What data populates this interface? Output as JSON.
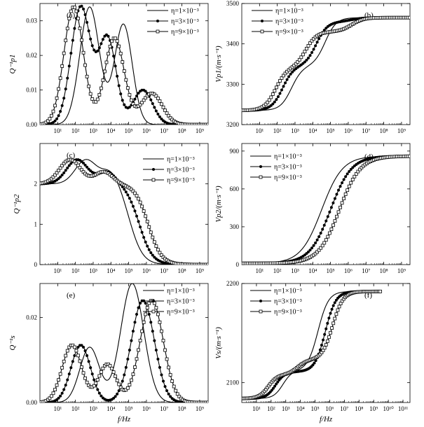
{
  "figure": {
    "xlabel": "f/Hz",
    "legend_labels": [
      "η=1×10⁻³",
      "η=3×10⁻³",
      "η=9×10⁻³"
    ],
    "series_styles": [
      "solid",
      "filled-circle",
      "open-square"
    ],
    "colors": {
      "line": "#000000",
      "background": "#ffffff"
    }
  },
  "chart_data": [
    {
      "id": "a",
      "panel_label": "(a)",
      "type": "line",
      "xscale": "log",
      "xlim": [
        1,
        3000000000.0
      ],
      "ylim": [
        0,
        0.035
      ],
      "x_ticks": [
        10,
        100,
        1000,
        10000,
        100000,
        1000000,
        10000000,
        100000000,
        1000000000
      ],
      "x_tick_labels": [
        "10¹",
        "10²",
        "10³",
        "10⁴",
        "10⁵",
        "10⁶",
        "10⁷",
        "10⁸",
        "10⁹"
      ],
      "y_ticks": [
        0,
        0.01,
        0.02,
        0.03
      ],
      "y_tick_labels": [
        "0.00",
        "0.01",
        "0.02",
        "0.03"
      ],
      "ylabel": "Q⁻¹p1",
      "legend_position": "top-right",
      "series": [
        {
          "name": "η=1×10⁻³",
          "style": "solid",
          "peaks": [
            {
              "logf": 2.8,
              "amp": 0.034,
              "w": 0.55
            },
            {
              "logf": 4.7,
              "amp": 0.029,
              "w": 0.5
            }
          ]
        },
        {
          "name": "η=3×10⁻³",
          "style": "filled-circle",
          "peaks": [
            {
              "logf": 2.3,
              "amp": 0.034,
              "w": 0.55
            },
            {
              "logf": 3.8,
              "amp": 0.025,
              "w": 0.5
            },
            {
              "logf": 5.8,
              "amp": 0.01,
              "w": 0.55
            }
          ]
        },
        {
          "name": "η=9×10⁻³",
          "style": "open-square",
          "peaks": [
            {
              "logf": 1.9,
              "amp": 0.034,
              "w": 0.55
            },
            {
              "logf": 4.2,
              "amp": 0.025,
              "w": 0.55
            },
            {
              "logf": 6.3,
              "amp": 0.009,
              "w": 0.6
            }
          ]
        }
      ]
    },
    {
      "id": "b",
      "panel_label": "(b)",
      "type": "line",
      "xscale": "log",
      "xlim": [
        1,
        3000000000.0
      ],
      "ylim": [
        3200,
        3500
      ],
      "x_ticks": [
        10,
        100,
        1000,
        10000,
        100000,
        1000000,
        10000000,
        100000000,
        1000000000
      ],
      "x_tick_labels": [
        "10¹",
        "10²",
        "10³",
        "10⁴",
        "10⁵",
        "10⁶",
        "10⁷",
        "10⁸",
        "10⁹"
      ],
      "y_ticks": [
        3200,
        3300,
        3400,
        3500
      ],
      "y_tick_labels": [
        "3200",
        "3300",
        "3400",
        "3500"
      ],
      "ylabel": "Vp1/(m·s⁻¹)",
      "legend_position": "top-right",
      "series": [
        {
          "name": "η=1×10⁻³",
          "style": "solid",
          "base": 3235,
          "steps": [
            {
              "logf": 2.8,
              "amp": 110,
              "k": 3.2
            },
            {
              "logf": 4.7,
              "amp": 120,
              "k": 3.2
            }
          ]
        },
        {
          "name": "η=3×10⁻³",
          "style": "filled-circle",
          "base": 3235,
          "steps": [
            {
              "logf": 2.3,
              "amp": 110,
              "k": 3.2
            },
            {
              "logf": 4.2,
              "amp": 110,
              "k": 3.2
            },
            {
              "logf": 6.2,
              "amp": 10,
              "k": 3
            }
          ]
        },
        {
          "name": "η=9×10⁻³",
          "style": "open-square",
          "base": 3235,
          "steps": [
            {
              "logf": 1.9,
              "amp": 105,
              "k": 3.2
            },
            {
              "logf": 3.6,
              "amp": 90,
              "k": 3.2
            },
            {
              "logf": 6.2,
              "amp": 35,
              "k": 3
            }
          ]
        }
      ]
    },
    {
      "id": "c",
      "panel_label": "(c)",
      "type": "line",
      "xscale": "log",
      "xlim": [
        1,
        3000000000.0
      ],
      "ylim": [
        0,
        3
      ],
      "x_ticks": [
        10,
        100,
        1000,
        10000,
        100000,
        1000000,
        10000000,
        100000000,
        1000000000
      ],
      "x_tick_labels": [
        "10¹",
        "10²",
        "10³",
        "10⁴",
        "10⁵",
        "10⁶",
        "10⁷",
        "10⁸",
        "10⁹"
      ],
      "y_ticks": [
        0,
        1,
        2
      ],
      "y_tick_labels": [
        "0",
        "1",
        "2"
      ],
      "ylabel": "Q⁻¹p2",
      "legend_position": "top-right",
      "series": [
        {
          "name": "η=1×10⁻³",
          "style": "solid",
          "base": 2.0,
          "mid": 5.1,
          "k": 2.7,
          "bumps": [
            {
              "logf": 2.6,
              "amp": 0.6,
              "w": 0.6
            },
            {
              "logf": 4.0,
              "amp": 0.35,
              "w": 0.5
            }
          ]
        },
        {
          "name": "η=3×10⁻³",
          "style": "filled-circle",
          "base": 2.0,
          "mid": 5.6,
          "k": 2.7,
          "bumps": [
            {
              "logf": 2.1,
              "amp": 0.6,
              "w": 0.6
            },
            {
              "logf": 3.8,
              "amp": 0.3,
              "w": 0.5
            }
          ]
        },
        {
          "name": "η=9×10⁻³",
          "style": "open-square",
          "base": 2.0,
          "mid": 6.1,
          "k": 2.7,
          "bumps": [
            {
              "logf": 1.7,
              "amp": 0.6,
              "w": 0.6
            },
            {
              "logf": 3.6,
              "amp": 0.3,
              "w": 0.5
            }
          ]
        }
      ]
    },
    {
      "id": "d",
      "panel_label": "(d)",
      "type": "line",
      "xscale": "log",
      "xlim": [
        1,
        3000000000.0
      ],
      "ylim": [
        0,
        960
      ],
      "x_ticks": [
        10,
        100,
        1000,
        10000,
        100000,
        1000000,
        10000000,
        100000000,
        1000000000
      ],
      "x_tick_labels": [
        "10¹",
        "10²",
        "10³",
        "10⁴",
        "10⁵",
        "10⁶",
        "10⁷",
        "10⁸",
        "10⁹"
      ],
      "y_ticks": [
        0,
        300,
        600,
        900
      ],
      "y_tick_labels": [
        "0",
        "300",
        "600",
        "900"
      ],
      "ylabel": "Vp2/(m·s⁻¹)",
      "legend_position": "top-right",
      "series": [
        {
          "name": "η=1×10⁻³",
          "style": "solid",
          "base": 10,
          "steps": [
            {
              "logf": 4.5,
              "amp": 850,
              "k": 1.7
            }
          ]
        },
        {
          "name": "η=3×10⁻³",
          "style": "filled-circle",
          "base": 10,
          "steps": [
            {
              "logf": 5.0,
              "amp": 850,
              "k": 1.7
            }
          ]
        },
        {
          "name": "η=9×10⁻³",
          "style": "open-square",
          "base": 10,
          "steps": [
            {
              "logf": 5.5,
              "amp": 850,
              "k": 1.7
            }
          ]
        }
      ]
    },
    {
      "id": "e",
      "panel_label": "(e)",
      "type": "line",
      "xscale": "log",
      "xlim": [
        1,
        3000000000.0
      ],
      "ylim": [
        0,
        0.028
      ],
      "x_ticks": [
        10,
        100,
        1000,
        10000,
        100000,
        1000000,
        10000000,
        100000000,
        1000000000
      ],
      "x_tick_labels": [
        "10¹",
        "10²",
        "10³",
        "10⁴",
        "10⁵",
        "10⁶",
        "10⁷",
        "10⁸",
        "10⁹"
      ],
      "y_ticks": [
        0,
        0.02
      ],
      "y_tick_labels": [
        "0.00",
        "0.02"
      ],
      "ylabel": "Q⁻¹s",
      "legend_position": "top-right",
      "series": [
        {
          "name": "η=1×10⁻³",
          "style": "solid",
          "peaks": [
            {
              "logf": 2.8,
              "amp": 0.013,
              "w": 0.55
            },
            {
              "logf": 5.2,
              "amp": 0.028,
              "w": 0.65
            }
          ]
        },
        {
          "name": "η=3×10⁻³",
          "style": "filled-circle",
          "peaks": [
            {
              "logf": 2.3,
              "amp": 0.0135,
              "w": 0.55
            },
            {
              "logf": 5.8,
              "amp": 0.024,
              "w": 0.65
            }
          ]
        },
        {
          "name": "η=9×10⁻³",
          "style": "open-square",
          "peaks": [
            {
              "logf": 1.8,
              "amp": 0.0135,
              "w": 0.55
            },
            {
              "logf": 3.8,
              "amp": 0.009,
              "w": 0.5
            },
            {
              "logf": 6.3,
              "amp": 0.024,
              "w": 0.65
            }
          ]
        }
      ]
    },
    {
      "id": "f",
      "panel_label": "(f)",
      "type": "line",
      "xscale": "log",
      "xlim": [
        1,
        300000000000.0
      ],
      "ylim": [
        2080,
        2200
      ],
      "x_ticks": [
        10,
        100,
        1000,
        10000,
        100000,
        1000000,
        10000000,
        100000000,
        1000000000,
        10000000000,
        100000000000
      ],
      "x_tick_labels": [
        "10¹",
        "10²",
        "10³",
        "10⁴",
        "10⁵",
        "10⁶",
        "10⁷",
        "10⁸",
        "10⁹",
        "10¹⁰",
        "10¹¹"
      ],
      "y_ticks": [
        2100,
        2200
      ],
      "y_tick_labels": [
        "2100",
        "2200"
      ],
      "ylabel": "Vs/(m·s⁻¹)",
      "legend_position": "top-right",
      "series": [
        {
          "name": "η=1×10⁻³",
          "style": "solid",
          "base": 2084,
          "xmax": 3000000000.0,
          "steps": [
            {
              "logf": 2.8,
              "amp": 28,
              "k": 3.2
            },
            {
              "logf": 5.2,
              "amp": 80,
              "k": 2.8
            }
          ]
        },
        {
          "name": "η=3×10⁻³",
          "style": "filled-circle",
          "base": 2084,
          "xmax": 3000000000.0,
          "steps": [
            {
              "logf": 2.3,
              "amp": 27,
              "k": 3.2
            },
            {
              "logf": 5.7,
              "amp": 81,
              "k": 2.8
            }
          ]
        },
        {
          "name": "η=9×10⁻³",
          "style": "open-square",
          "base": 2084,
          "xmax": 3000000000.0,
          "steps": [
            {
              "logf": 1.8,
              "amp": 24,
              "k": 3.2
            },
            {
              "logf": 3.8,
              "amp": 15,
              "k": 3
            },
            {
              "logf": 6.2,
              "amp": 69,
              "k": 2.8
            }
          ]
        }
      ]
    }
  ]
}
